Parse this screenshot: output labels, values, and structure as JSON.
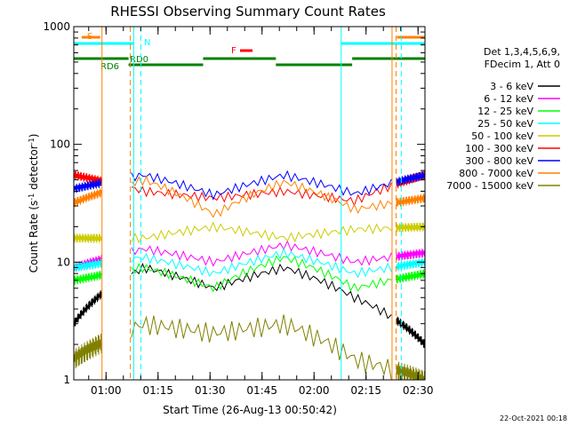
{
  "chart_data": {
    "type": "line",
    "title": "RHESSI Observing Summary Count Rates",
    "xlabel": "Start Time (26-Aug-13 00:50:42)",
    "ylabel_main": "Count Rate (s",
    "ylabel_sup1": "-1",
    "ylabel_mid": " detector",
    "ylabel_sup2": "-1",
    "ylabel_end": ")",
    "yscale": "log",
    "ylim": [
      1,
      1000
    ],
    "xlim": [
      "00:50:42",
      "02:32:00"
    ],
    "yticks": [
      {
        "value": 1,
        "label": "1"
      },
      {
        "value": 10,
        "label": "10"
      },
      {
        "value": 100,
        "label": "100"
      },
      {
        "value": 1000,
        "label": "1000"
      }
    ],
    "xticks": [
      "01:00",
      "01:15",
      "01:30",
      "01:45",
      "02:00",
      "02:15",
      "02:30"
    ],
    "legend_header": [
      "Det 1,3,4,5,6,9,",
      "FDecim 1, Att 0"
    ],
    "series": [
      {
        "name": "3 - 6 keV",
        "color": "#000000",
        "levels": [
          3,
          9,
          6,
          9,
          5,
          2
        ]
      },
      {
        "name": "6 - 12 keV",
        "color": "#ff00ff",
        "levels": [
          9,
          13,
          10,
          14,
          10,
          12
        ]
      },
      {
        "name": "12 - 25 keV",
        "color": "#00ff00",
        "levels": [
          7,
          9,
          6,
          11,
          6,
          8
        ]
      },
      {
        "name": "25 - 50 keV",
        "color": "#00ffff",
        "levels": [
          9,
          11,
          8,
          12,
          8,
          10
        ]
      },
      {
        "name": "50 - 100 keV",
        "color": "#cccc00",
        "levels": [
          16,
          16,
          20,
          16,
          19,
          20
        ]
      },
      {
        "name": "100 - 300 keV",
        "color": "#ff0000",
        "levels": [
          55,
          40,
          35,
          40,
          33,
          55
        ]
      },
      {
        "name": "300 - 800 keV",
        "color": "#0000ff",
        "levels": [
          42,
          55,
          37,
          55,
          38,
          55
        ]
      },
      {
        "name": "800 - 7000 keV",
        "color": "#ff8000",
        "levels": [
          32,
          50,
          25,
          48,
          28,
          35
        ]
      },
      {
        "name": "7000 - 15000 keV",
        "color": "#808000",
        "levels": [
          1.5,
          3,
          2.5,
          3,
          1.5,
          1
        ]
      }
    ],
    "flags": [
      {
        "label": "S",
        "color": "#ff8000"
      },
      {
        "label": "N",
        "color": "#00ffff"
      },
      {
        "label": "F",
        "color": "#ff0000"
      },
      {
        "label": "RD0",
        "color": "#008000"
      },
      {
        "label": "RD6",
        "color": "#008000"
      }
    ],
    "grid": false,
    "legend_position": "right"
  },
  "footer_date": "22-Oct-2021 00:18"
}
